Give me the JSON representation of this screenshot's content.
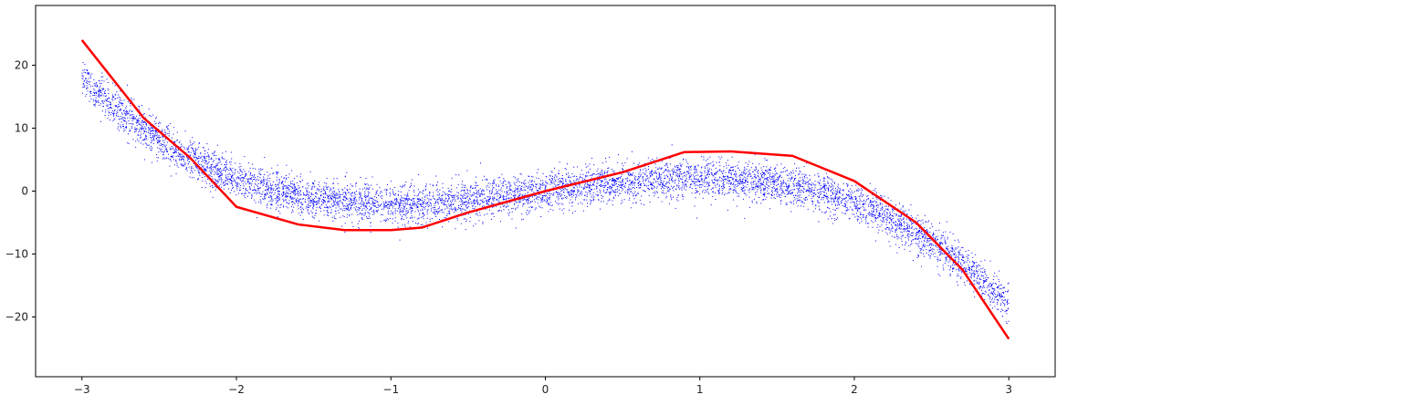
{
  "chart_data": {
    "type": "scatter",
    "title": "",
    "xlabel": "",
    "ylabel": "",
    "xlim": [
      -3.3,
      3.3
    ],
    "ylim": [
      -29.5,
      29.5
    ],
    "grid": false,
    "x_ticks": [
      -3,
      -2,
      -1,
      0,
      1,
      2,
      3
    ],
    "y_ticks": [
      -20,
      -10,
      0,
      10,
      20
    ],
    "x_tick_labels": [
      "−3",
      "−2",
      "−1",
      "0",
      "1",
      "2",
      "3"
    ],
    "y_tick_labels": [
      "−20",
      "−10",
      "0",
      "10",
      "20"
    ],
    "series": [
      {
        "kind": "scatter",
        "color": "#0000ff",
        "function": "-x^3 + 3x",
        "x_range": [
          -3,
          3
        ],
        "noise_std": 1.5,
        "point_count": 7000
      },
      {
        "kind": "line",
        "color": "#ff0000",
        "x": [
          -3.0,
          -2.6,
          -2.3,
          -2.0,
          -1.6,
          -1.3,
          -1.0,
          -0.8,
          -0.5,
          0.0,
          0.5,
          0.9,
          1.2,
          1.6,
          2.0,
          2.4,
          2.7,
          3.0
        ],
        "y": [
          24.0,
          11.6,
          5.3,
          -2.5,
          -5.3,
          -6.2,
          -6.2,
          -5.8,
          -3.4,
          0.0,
          3.0,
          6.2,
          6.3,
          5.6,
          1.6,
          -5.0,
          -12.5,
          -23.5
        ]
      }
    ]
  }
}
